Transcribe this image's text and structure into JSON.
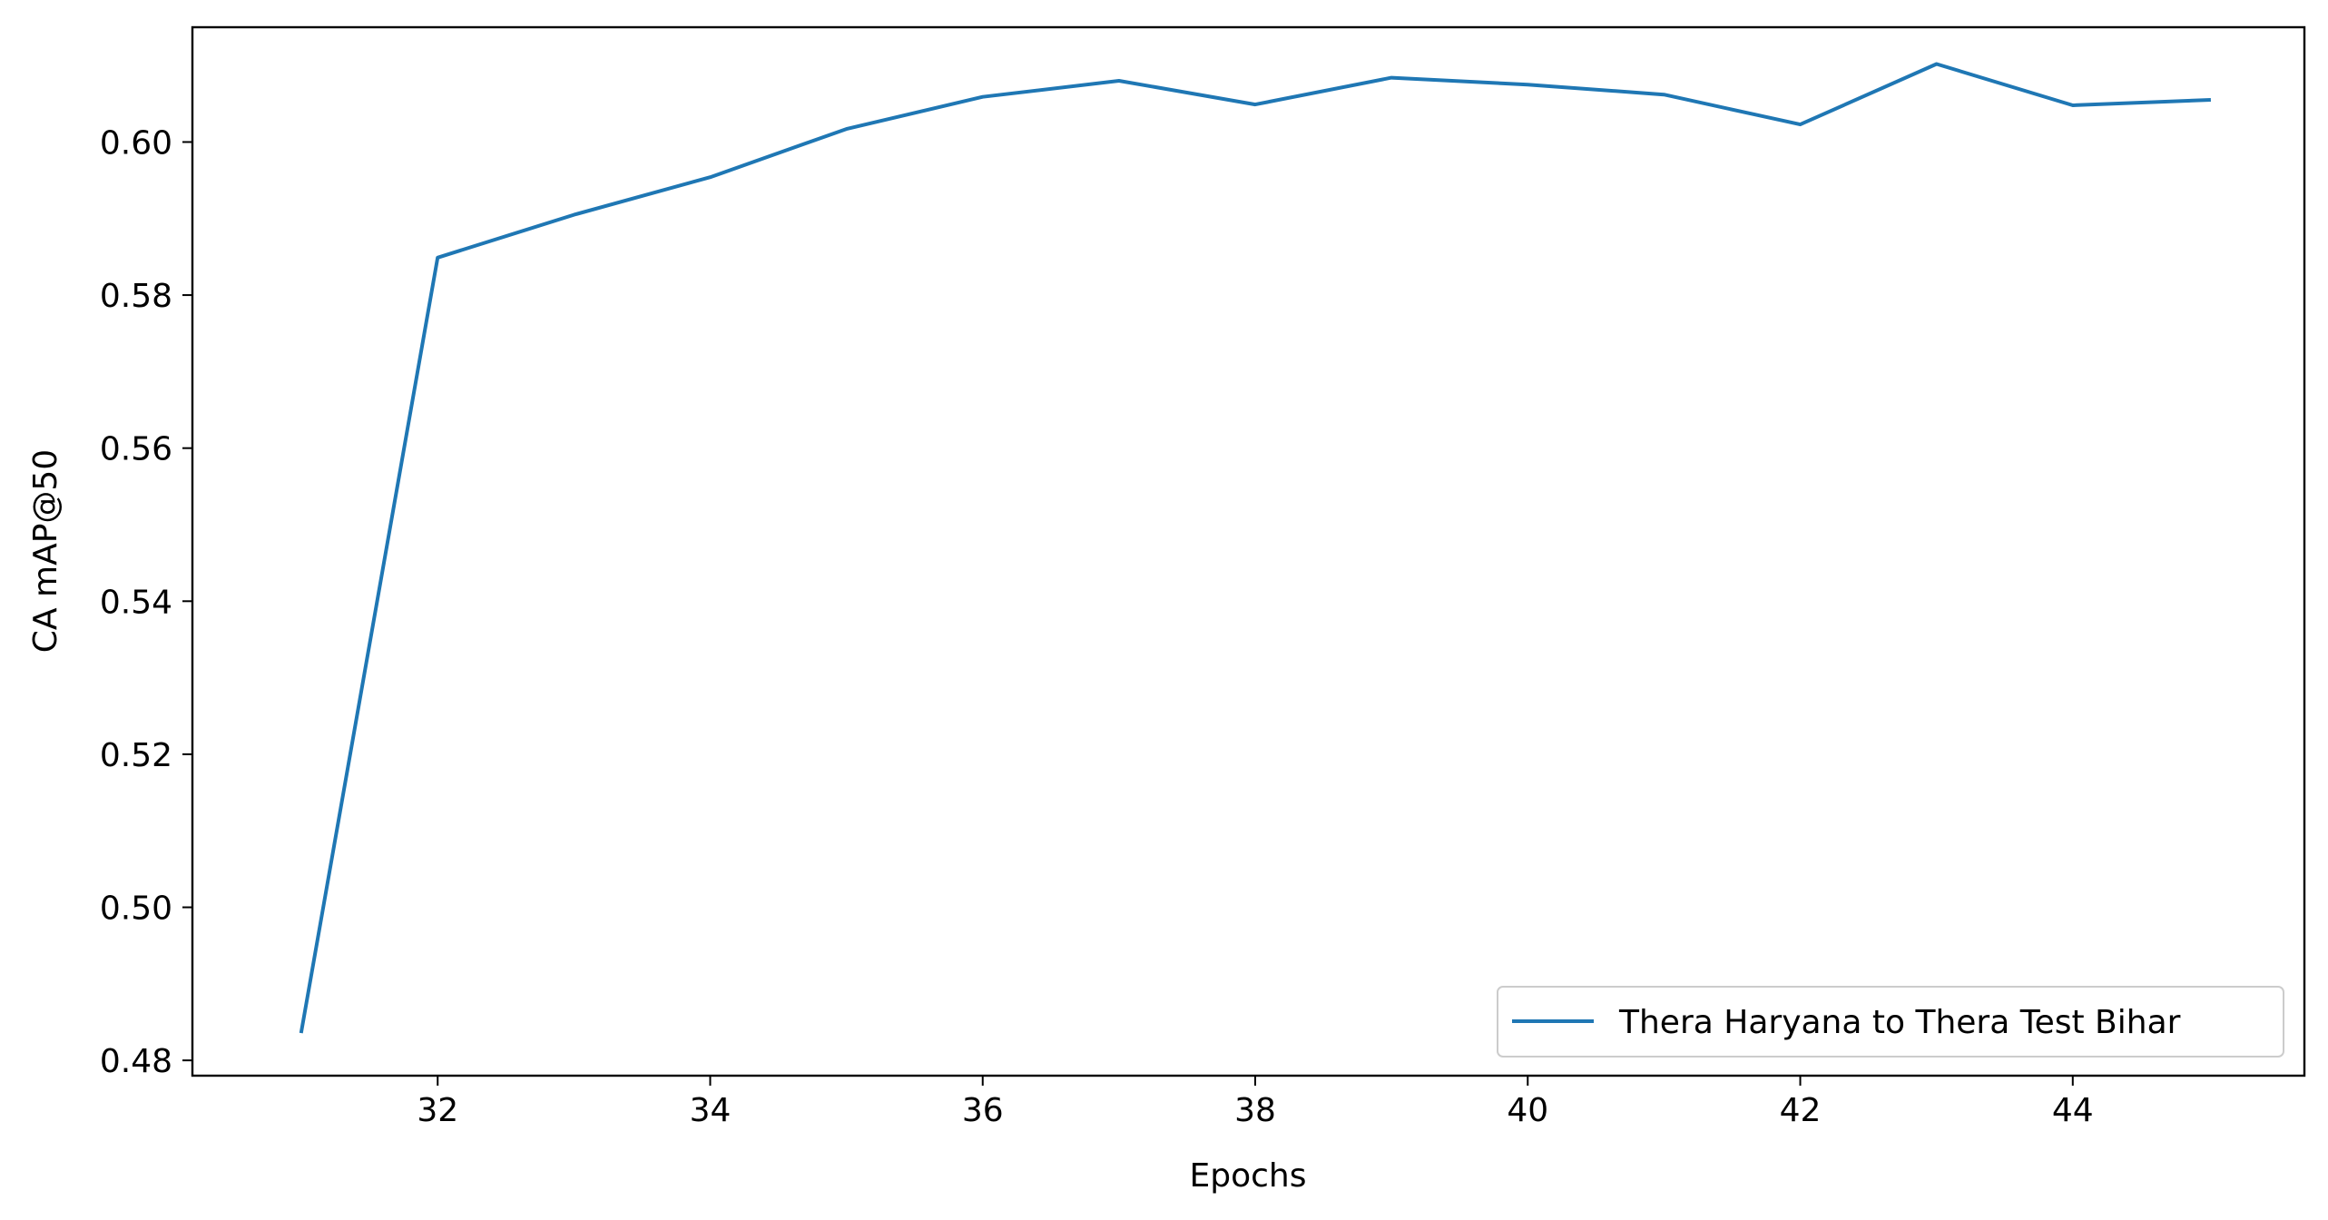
{
  "chart_data": {
    "type": "line",
    "title": "",
    "xlabel": "Epochs",
    "ylabel": "CA mAP@50",
    "xlim": [
      30.2,
      45.7
    ],
    "ylim": [
      0.478,
      0.615
    ],
    "xticks": [
      32,
      34,
      36,
      38,
      40,
      42,
      44
    ],
    "xtick_labels": [
      "32",
      "34",
      "36",
      "38",
      "40",
      "42",
      "44"
    ],
    "yticks": [
      0.48,
      0.5,
      0.52,
      0.54,
      0.56,
      0.58,
      0.6
    ],
    "ytick_labels": [
      "0.48",
      "0.50",
      "0.52",
      "0.54",
      "0.56",
      "0.58",
      "0.60"
    ],
    "grid": false,
    "legend_position": "lower-right",
    "series": [
      {
        "name": "Thera Haryana to Thera Test Bihar",
        "color": "#1f77b4",
        "x": [
          31,
          32,
          33,
          34,
          35,
          36,
          37,
          38,
          39,
          40,
          41,
          42,
          43,
          44,
          45
        ],
        "y": [
          0.4838,
          0.5849,
          0.5905,
          0.5954,
          0.6017,
          0.6059,
          0.608,
          0.6049,
          0.6084,
          0.6075,
          0.6062,
          0.6023,
          0.6102,
          0.6048,
          0.6055
        ]
      }
    ]
  }
}
